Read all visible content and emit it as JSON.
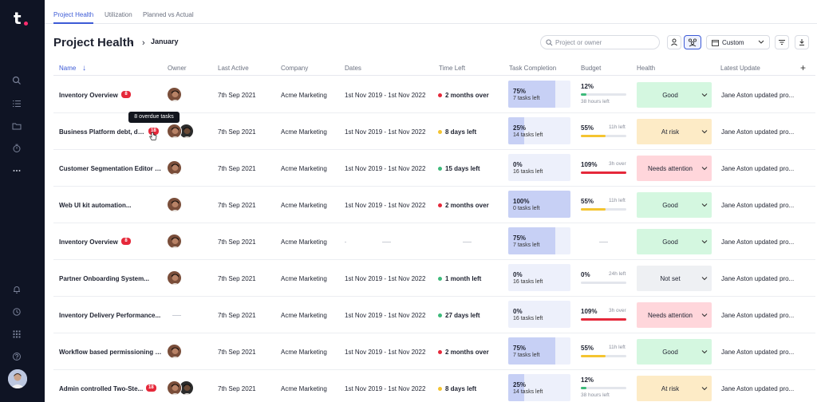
{
  "tabs": [
    {
      "label": "Project Health",
      "active": true
    },
    {
      "label": "Utilization",
      "active": false
    },
    {
      "label": "Planned vs Actual",
      "active": false
    }
  ],
  "header": {
    "title": "Project Health",
    "month": "January"
  },
  "toolbar": {
    "search_placeholder": "Project or owner",
    "range_label": "Custom"
  },
  "columns": [
    "Name",
    "Owner",
    "Last Active",
    "Company",
    "Dates",
    "Time Left",
    "Task Completion",
    "Budget",
    "Health",
    "Latest Update"
  ],
  "tooltip": "8 overdue tasks",
  "colors": {
    "good": "#d4f7e0",
    "at_risk": "#fdebc6",
    "attention": "#ffd6db",
    "not_set": "#eef0f3",
    "red": "#e5283a",
    "yellow": "#f4c430",
    "green": "#3dba7a",
    "accent": "#3d5bd6"
  },
  "rows": [
    {
      "name": "Inventory Overview",
      "badge": "8",
      "owners": 1,
      "last_active": "7th Sep 2021",
      "company": "Acme Marketing",
      "dates": "1st Nov 2019 - 1st Nov 2022",
      "time_left": "2 months over",
      "time_color": "red",
      "task_pct": "75%",
      "task_fill": 0.75,
      "tasks_left": "7 tasks left",
      "budget_pct": "12%",
      "budget_note": "38 hours left",
      "budget_note_pos": "below",
      "budget_fill": 0.12,
      "budget_color": "green",
      "health": "Good",
      "health_color": "good",
      "latest": "Jane Aston updated pro..."
    },
    {
      "name": "Business Platform debt, de...",
      "badge": "18",
      "owners": 2,
      "last_active": "7th Sep 2021",
      "company": "Acme Marketing",
      "dates": "1st Nov 2019 - 1st Nov 2022",
      "time_left": "8 days left",
      "time_color": "yellow",
      "task_pct": "25%",
      "task_fill": 0.25,
      "tasks_left": "14 tasks left",
      "budget_pct": "55%",
      "budget_note": "11h left",
      "budget_note_pos": "right",
      "budget_fill": 0.55,
      "budget_color": "yellow",
      "health": "At risk",
      "health_color": "at_risk",
      "latest": "Jane Aston updated pro..."
    },
    {
      "name": "Customer Segmentation Editor F...",
      "badge": "",
      "owners": 1,
      "last_active": "7th Sep 2021",
      "company": "Acme Marketing",
      "dates": "1st Nov 2019 - 1st Nov 2022",
      "time_left": "15 days left",
      "time_color": "green",
      "task_pct": "0%",
      "task_fill": 0,
      "tasks_left": "16 tasks left",
      "budget_pct": "109%",
      "budget_note": "3h over",
      "budget_note_pos": "right",
      "budget_fill": 1,
      "budget_color": "red",
      "health": "Needs attention",
      "health_color": "attention",
      "latest": "Jane Aston updated pro..."
    },
    {
      "name": "Web UI kit automation...",
      "badge": "",
      "owners": 1,
      "last_active": "7th Sep 2021",
      "company": "Acme Marketing",
      "dates": "1st Nov 2019 - 1st Nov 2022",
      "time_left": "2 months over",
      "time_color": "red",
      "task_pct": "100%",
      "task_fill": 1,
      "tasks_left": "0 tasks left",
      "budget_pct": "55%",
      "budget_note": "11h left",
      "budget_note_pos": "right",
      "budget_fill": 0.55,
      "budget_color": "yellow",
      "health": "Good",
      "health_color": "good",
      "latest": "Jane Aston updated pro..."
    },
    {
      "name": "Inventory Overview",
      "badge": "8",
      "owners": 1,
      "last_active": "7th Sep 2021",
      "company": "Acme Marketing",
      "dates": "",
      "time_left": "",
      "time_color": "",
      "task_pct": "75%",
      "task_fill": 0.75,
      "tasks_left": "7 tasks left",
      "budget_pct": "",
      "budget_note": "",
      "budget_note_pos": "",
      "budget_fill": 0,
      "budget_color": "",
      "health": "Good",
      "health_color": "good",
      "latest": "Jane Aston updated pro..."
    },
    {
      "name": "Partner Onboarding System...",
      "badge": "",
      "owners": 1,
      "last_active": "7th Sep 2021",
      "company": "Acme Marketing",
      "dates": "1st Nov 2019 - 1st Nov 2022",
      "time_left": "1 month left",
      "time_color": "green",
      "task_pct": "0%",
      "task_fill": 0,
      "tasks_left": "16 tasks left",
      "budget_pct": "0%",
      "budget_note": "24h left",
      "budget_note_pos": "right",
      "budget_fill": 0,
      "budget_color": "green",
      "health": "Not set",
      "health_color": "not_set",
      "latest": "Jane Aston updated pro..."
    },
    {
      "name": "Inventory Delivery Performance...",
      "badge": "",
      "owners": 0,
      "last_active": "7th Sep 2021",
      "company": "Acme Marketing",
      "dates": "1st Nov 2019 - 1st Nov 2022",
      "time_left": "27 days left",
      "time_color": "green",
      "task_pct": "0%",
      "task_fill": 0,
      "tasks_left": "16 tasks left",
      "budget_pct": "109%",
      "budget_note": "3h over",
      "budget_note_pos": "right",
      "budget_fill": 1,
      "budget_color": "red",
      "health": "Needs attention",
      "health_color": "attention",
      "latest": "Jane Aston updated pro..."
    },
    {
      "name": "Workflow based permissioning e...",
      "badge": "",
      "owners": 1,
      "last_active": "7th Sep 2021",
      "company": "Acme Marketing",
      "dates": "1st Nov 2019 - 1st Nov 2022",
      "time_left": "2 months over",
      "time_color": "red",
      "task_pct": "75%",
      "task_fill": 0.75,
      "tasks_left": "7 tasks left",
      "budget_pct": "55%",
      "budget_note": "11h left",
      "budget_note_pos": "right",
      "budget_fill": 0.55,
      "budget_color": "yellow",
      "health": "Good",
      "health_color": "good",
      "latest": "Jane Aston updated pro..."
    },
    {
      "name": "Admin controlled Two-Ste...",
      "badge": "18",
      "owners": 2,
      "last_active": "7th Sep 2021",
      "company": "Acme Marketing",
      "dates": "1st Nov 2019 - 1st Nov 2022",
      "time_left": "8 days left",
      "time_color": "yellow",
      "task_pct": "25%",
      "task_fill": 0.25,
      "tasks_left": "14 tasks left",
      "budget_pct": "12%",
      "budget_note": "38 hours left",
      "budget_note_pos": "below",
      "budget_fill": 0.12,
      "budget_color": "green",
      "health": "At risk",
      "health_color": "at_risk",
      "latest": "Jane Aston updated pro..."
    }
  ]
}
